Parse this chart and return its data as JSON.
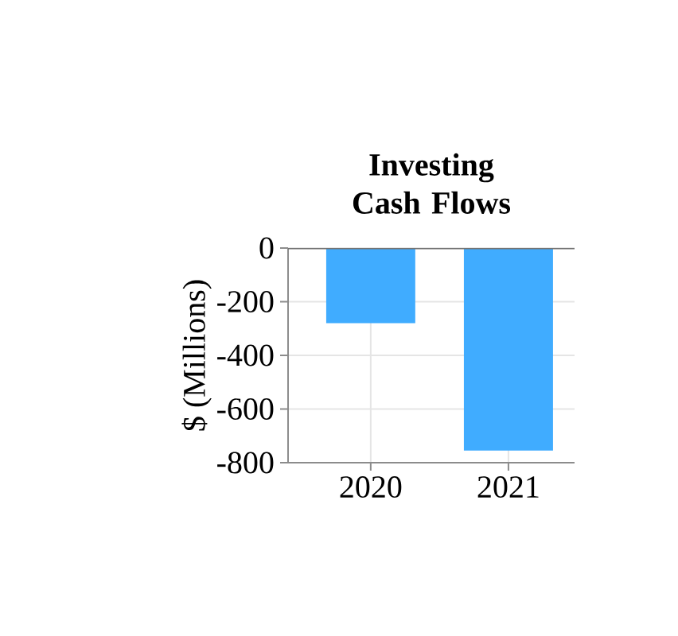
{
  "chart_data": {
    "type": "bar",
    "title": "Investing Cash Flows",
    "ylabel": "$ (Millions)",
    "categories": [
      "2020",
      "2021"
    ],
    "values": [
      -280,
      -755
    ],
    "color": "#40acff",
    "ylim": [
      -800,
      0
    ],
    "yticks": [
      -800,
      -600,
      -400,
      -200,
      0
    ],
    "grid": true
  }
}
